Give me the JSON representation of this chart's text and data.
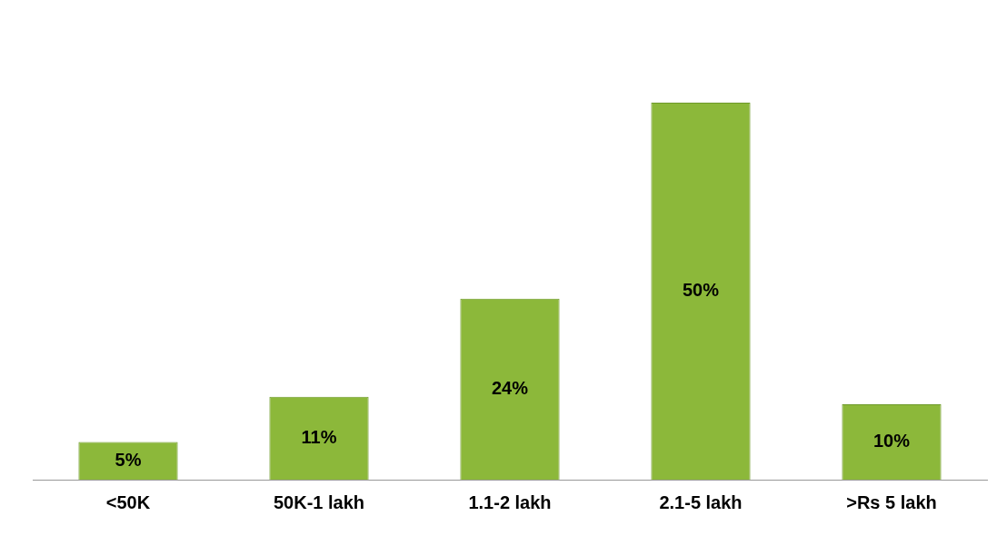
{
  "chart_data": {
    "type": "bar",
    "categories": [
      "<50K",
      "50K-1 lakh",
      "1.1-2 lakh",
      "2.1-5 lakh",
      ">Rs 5 lakh"
    ],
    "values": [
      5,
      11,
      24,
      50,
      10
    ],
    "value_labels": [
      "5%",
      "11%",
      "24%",
      "50%",
      "10%"
    ],
    "color": "#8cb83a",
    "grid": false,
    "legend": false
  }
}
